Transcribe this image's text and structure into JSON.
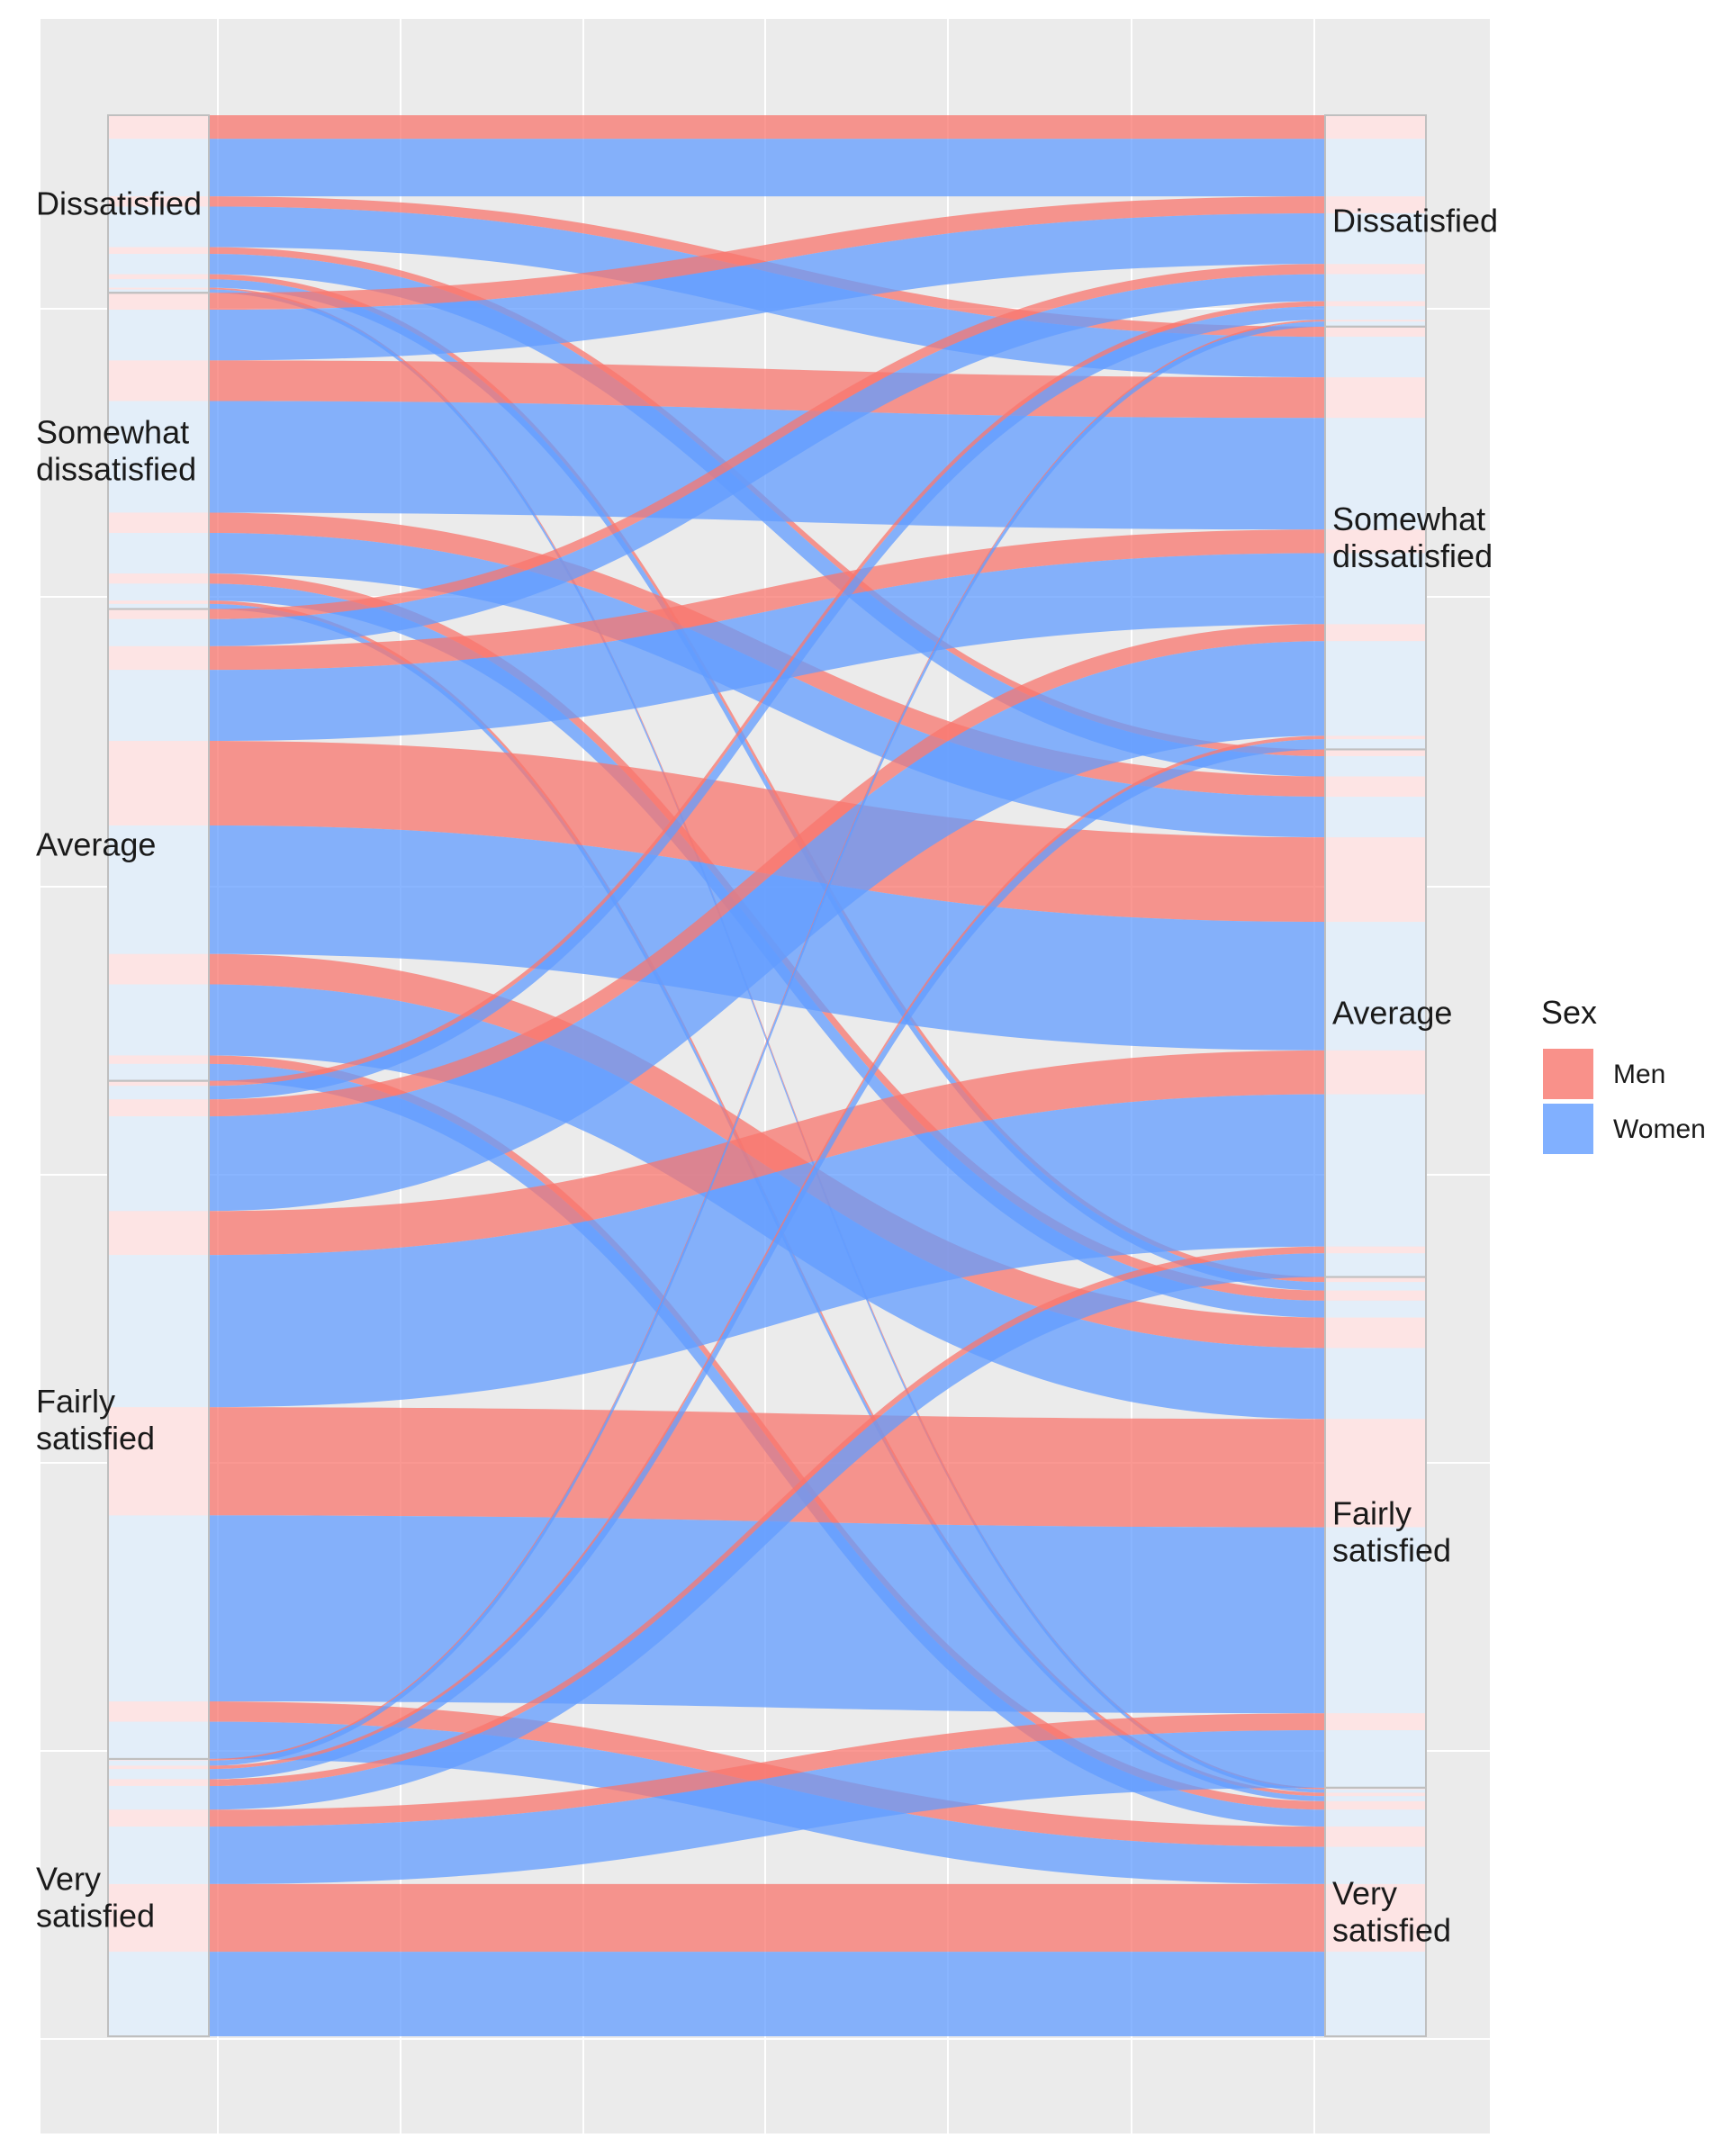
{
  "chart_data": {
    "type": "alluvial",
    "title": "",
    "xlabel": "",
    "ylabel": "",
    "axis_left_levels": [
      "Dissatisfied",
      "Somewhat dissatisfied",
      "Average",
      "Fairly satisfied",
      "Very satisfied"
    ],
    "axis_right_levels": [
      "Dissatisfied",
      "Somewhat dissatisfied",
      "Average",
      "Fairly satisfied",
      "Very satisfied"
    ],
    "left_labels": [
      {
        "key": "Dissatisfied",
        "lines": [
          "Dissatisfied"
        ]
      },
      {
        "key": "Somewhat dissatisfied",
        "lines": [
          "Somewhat",
          "dissatisfied"
        ]
      },
      {
        "key": "Average",
        "lines": [
          "Average"
        ]
      },
      {
        "key": "Fairly satisfied",
        "lines": [
          "Fairly",
          "satisfied"
        ]
      },
      {
        "key": "Very satisfied",
        "lines": [
          "Very",
          "satisfied"
        ]
      }
    ],
    "right_labels": [
      {
        "key": "Dissatisfied",
        "lines": [
          "Dissatisfied"
        ]
      },
      {
        "key": "Somewhat dissatisfied",
        "lines": [
          "Somewhat",
          "dissatisfied"
        ]
      },
      {
        "key": "Average",
        "lines": [
          "Average"
        ]
      },
      {
        "key": "Fairly satisfied",
        "lines": [
          "Fairly",
          "satisfied"
        ]
      },
      {
        "key": "Very satisfied",
        "lines": [
          "Very",
          "satisfied"
        ]
      }
    ],
    "legend": {
      "title": "Sex",
      "position": "right",
      "items": [
        {
          "key": "Men",
          "label": "Men",
          "color": "#F8766D"
        },
        {
          "key": "Women",
          "label": "Women",
          "color": "#619CFF"
        }
      ]
    },
    "flows": [
      {
        "from": "Dissatisfied",
        "to": "Dissatisfied",
        "sex": "Men",
        "value": 1.4
      },
      {
        "from": "Dissatisfied",
        "to": "Dissatisfied",
        "sex": "Women",
        "value": 3.4
      },
      {
        "from": "Dissatisfied",
        "to": "Somewhat dissatisfied",
        "sex": "Men",
        "value": 0.6
      },
      {
        "from": "Dissatisfied",
        "to": "Somewhat dissatisfied",
        "sex": "Women",
        "value": 2.4
      },
      {
        "from": "Dissatisfied",
        "to": "Average",
        "sex": "Men",
        "value": 0.4
      },
      {
        "from": "Dissatisfied",
        "to": "Average",
        "sex": "Women",
        "value": 1.2
      },
      {
        "from": "Dissatisfied",
        "to": "Fairly satisfied",
        "sex": "Men",
        "value": 0.3
      },
      {
        "from": "Dissatisfied",
        "to": "Fairly satisfied",
        "sex": "Women",
        "value": 0.5
      },
      {
        "from": "Dissatisfied",
        "to": "Very satisfied",
        "sex": "Men",
        "value": 0.1
      },
      {
        "from": "Dissatisfied",
        "to": "Very satisfied",
        "sex": "Women",
        "value": 0.2
      },
      {
        "from": "Somewhat dissatisfied",
        "to": "Dissatisfied",
        "sex": "Men",
        "value": 1.0
      },
      {
        "from": "Somewhat dissatisfied",
        "to": "Dissatisfied",
        "sex": "Women",
        "value": 3.0
      },
      {
        "from": "Somewhat dissatisfied",
        "to": "Somewhat dissatisfied",
        "sex": "Men",
        "value": 2.4
      },
      {
        "from": "Somewhat dissatisfied",
        "to": "Somewhat dissatisfied",
        "sex": "Women",
        "value": 6.6
      },
      {
        "from": "Somewhat dissatisfied",
        "to": "Average",
        "sex": "Men",
        "value": 1.2
      },
      {
        "from": "Somewhat dissatisfied",
        "to": "Average",
        "sex": "Women",
        "value": 2.4
      },
      {
        "from": "Somewhat dissatisfied",
        "to": "Fairly satisfied",
        "sex": "Men",
        "value": 0.6
      },
      {
        "from": "Somewhat dissatisfied",
        "to": "Fairly satisfied",
        "sex": "Women",
        "value": 1.0
      },
      {
        "from": "Somewhat dissatisfied",
        "to": "Very satisfied",
        "sex": "Men",
        "value": 0.2
      },
      {
        "from": "Somewhat dissatisfied",
        "to": "Very satisfied",
        "sex": "Women",
        "value": 0.3
      },
      {
        "from": "Average",
        "to": "Dissatisfied",
        "sex": "Men",
        "value": 0.6
      },
      {
        "from": "Average",
        "to": "Dissatisfied",
        "sex": "Women",
        "value": 1.6
      },
      {
        "from": "Average",
        "to": "Somewhat dissatisfied",
        "sex": "Men",
        "value": 1.4
      },
      {
        "from": "Average",
        "to": "Somewhat dissatisfied",
        "sex": "Women",
        "value": 4.2
      },
      {
        "from": "Average",
        "to": "Average",
        "sex": "Men",
        "value": 5.0
      },
      {
        "from": "Average",
        "to": "Average",
        "sex": "Women",
        "value": 7.6
      },
      {
        "from": "Average",
        "to": "Fairly satisfied",
        "sex": "Men",
        "value": 1.8
      },
      {
        "from": "Average",
        "to": "Fairly satisfied",
        "sex": "Women",
        "value": 4.2
      },
      {
        "from": "Average",
        "to": "Very satisfied",
        "sex": "Men",
        "value": 0.5
      },
      {
        "from": "Average",
        "to": "Very satisfied",
        "sex": "Women",
        "value": 1.0
      },
      {
        "from": "Fairly satisfied",
        "to": "Dissatisfied",
        "sex": "Men",
        "value": 0.3
      },
      {
        "from": "Fairly satisfied",
        "to": "Dissatisfied",
        "sex": "Women",
        "value": 0.8
      },
      {
        "from": "Fairly satisfied",
        "to": "Somewhat dissatisfied",
        "sex": "Men",
        "value": 1.0
      },
      {
        "from": "Fairly satisfied",
        "to": "Somewhat dissatisfied",
        "sex": "Women",
        "value": 5.6
      },
      {
        "from": "Fairly satisfied",
        "to": "Average",
        "sex": "Men",
        "value": 2.6
      },
      {
        "from": "Fairly satisfied",
        "to": "Average",
        "sex": "Women",
        "value": 9.0
      },
      {
        "from": "Fairly satisfied",
        "to": "Fairly satisfied",
        "sex": "Men",
        "value": 6.4
      },
      {
        "from": "Fairly satisfied",
        "to": "Fairly satisfied",
        "sex": "Women",
        "value": 11.0
      },
      {
        "from": "Fairly satisfied",
        "to": "Very satisfied",
        "sex": "Men",
        "value": 1.2
      },
      {
        "from": "Fairly satisfied",
        "to": "Very satisfied",
        "sex": "Women",
        "value": 2.2
      },
      {
        "from": "Very satisfied",
        "to": "Dissatisfied",
        "sex": "Men",
        "value": 0.1
      },
      {
        "from": "Very satisfied",
        "to": "Dissatisfied",
        "sex": "Women",
        "value": 0.3
      },
      {
        "from": "Very satisfied",
        "to": "Somewhat dissatisfied",
        "sex": "Men",
        "value": 0.2
      },
      {
        "from": "Very satisfied",
        "to": "Somewhat dissatisfied",
        "sex": "Women",
        "value": 0.6
      },
      {
        "from": "Very satisfied",
        "to": "Average",
        "sex": "Men",
        "value": 0.4
      },
      {
        "from": "Very satisfied",
        "to": "Average",
        "sex": "Women",
        "value": 1.4
      },
      {
        "from": "Very satisfied",
        "to": "Fairly satisfied",
        "sex": "Men",
        "value": 1.0
      },
      {
        "from": "Very satisfied",
        "to": "Fairly satisfied",
        "sex": "Women",
        "value": 3.4
      },
      {
        "from": "Very satisfied",
        "to": "Very satisfied",
        "sex": "Men",
        "value": 4.0
      },
      {
        "from": "Very satisfied",
        "to": "Very satisfied",
        "sex": "Women",
        "value": 5.0
      }
    ],
    "grid": true,
    "flow_alpha": 0.75
  }
}
